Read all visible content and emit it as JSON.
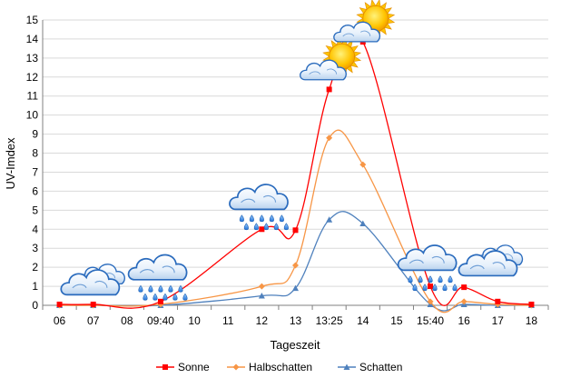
{
  "chart_data": {
    "type": "line",
    "title": "",
    "xlabel": "Tageszeit",
    "ylabel": "UV-Imdex",
    "ylim": [
      0,
      15
    ],
    "y_ticks": [
      0,
      1,
      2,
      3,
      4,
      5,
      6,
      7,
      8,
      9,
      10,
      11,
      12,
      13,
      14,
      15
    ],
    "categories": [
      "06",
      "07",
      "08",
      "09:40",
      "10",
      "11",
      "12",
      "13",
      "13:25",
      "14",
      "15",
      "15:40",
      "16",
      "17",
      "18"
    ],
    "grid": true,
    "legend_position": "bottom",
    "series": [
      {
        "name": "Sonne",
        "color": "#ff0000",
        "marker": "square",
        "values": [
          0.05,
          0.05,
          null,
          0.2,
          null,
          null,
          4.0,
          3.95,
          11.35,
          13.85,
          null,
          1.0,
          0.95,
          0.2,
          0.05
        ]
      },
      {
        "name": "Halbschatten",
        "color": "#f79646",
        "marker": "diamond",
        "values": [
          0.0,
          0.0,
          null,
          0.05,
          null,
          null,
          1.0,
          2.1,
          8.8,
          7.4,
          null,
          0.2,
          0.2,
          0.05,
          0.0
        ]
      },
      {
        "name": "Schatten",
        "color": "#4f81bd",
        "marker": "triangle",
        "values": [
          0.0,
          0.0,
          null,
          0.0,
          null,
          null,
          0.5,
          0.9,
          4.5,
          4.3,
          null,
          0.05,
          0.05,
          0.0,
          0.0
        ]
      }
    ],
    "weather_icons": [
      {
        "type": "cloud",
        "category_index": 1,
        "level": 1.2
      },
      {
        "type": "cloud-rain",
        "category_index": 3,
        "level": 1.8
      },
      {
        "type": "cloud-rain",
        "category_index": 6,
        "level": 5.5
      },
      {
        "type": "sun-cloud",
        "category_index": 8,
        "level": 12.6
      },
      {
        "type": "sun-cloud",
        "category_index": 9,
        "level": 14.6
      },
      {
        "type": "cloud-rain",
        "category_index": 11,
        "level": 2.3
      },
      {
        "type": "cloud",
        "category_index": 12.8,
        "level": 2.2
      }
    ]
  }
}
